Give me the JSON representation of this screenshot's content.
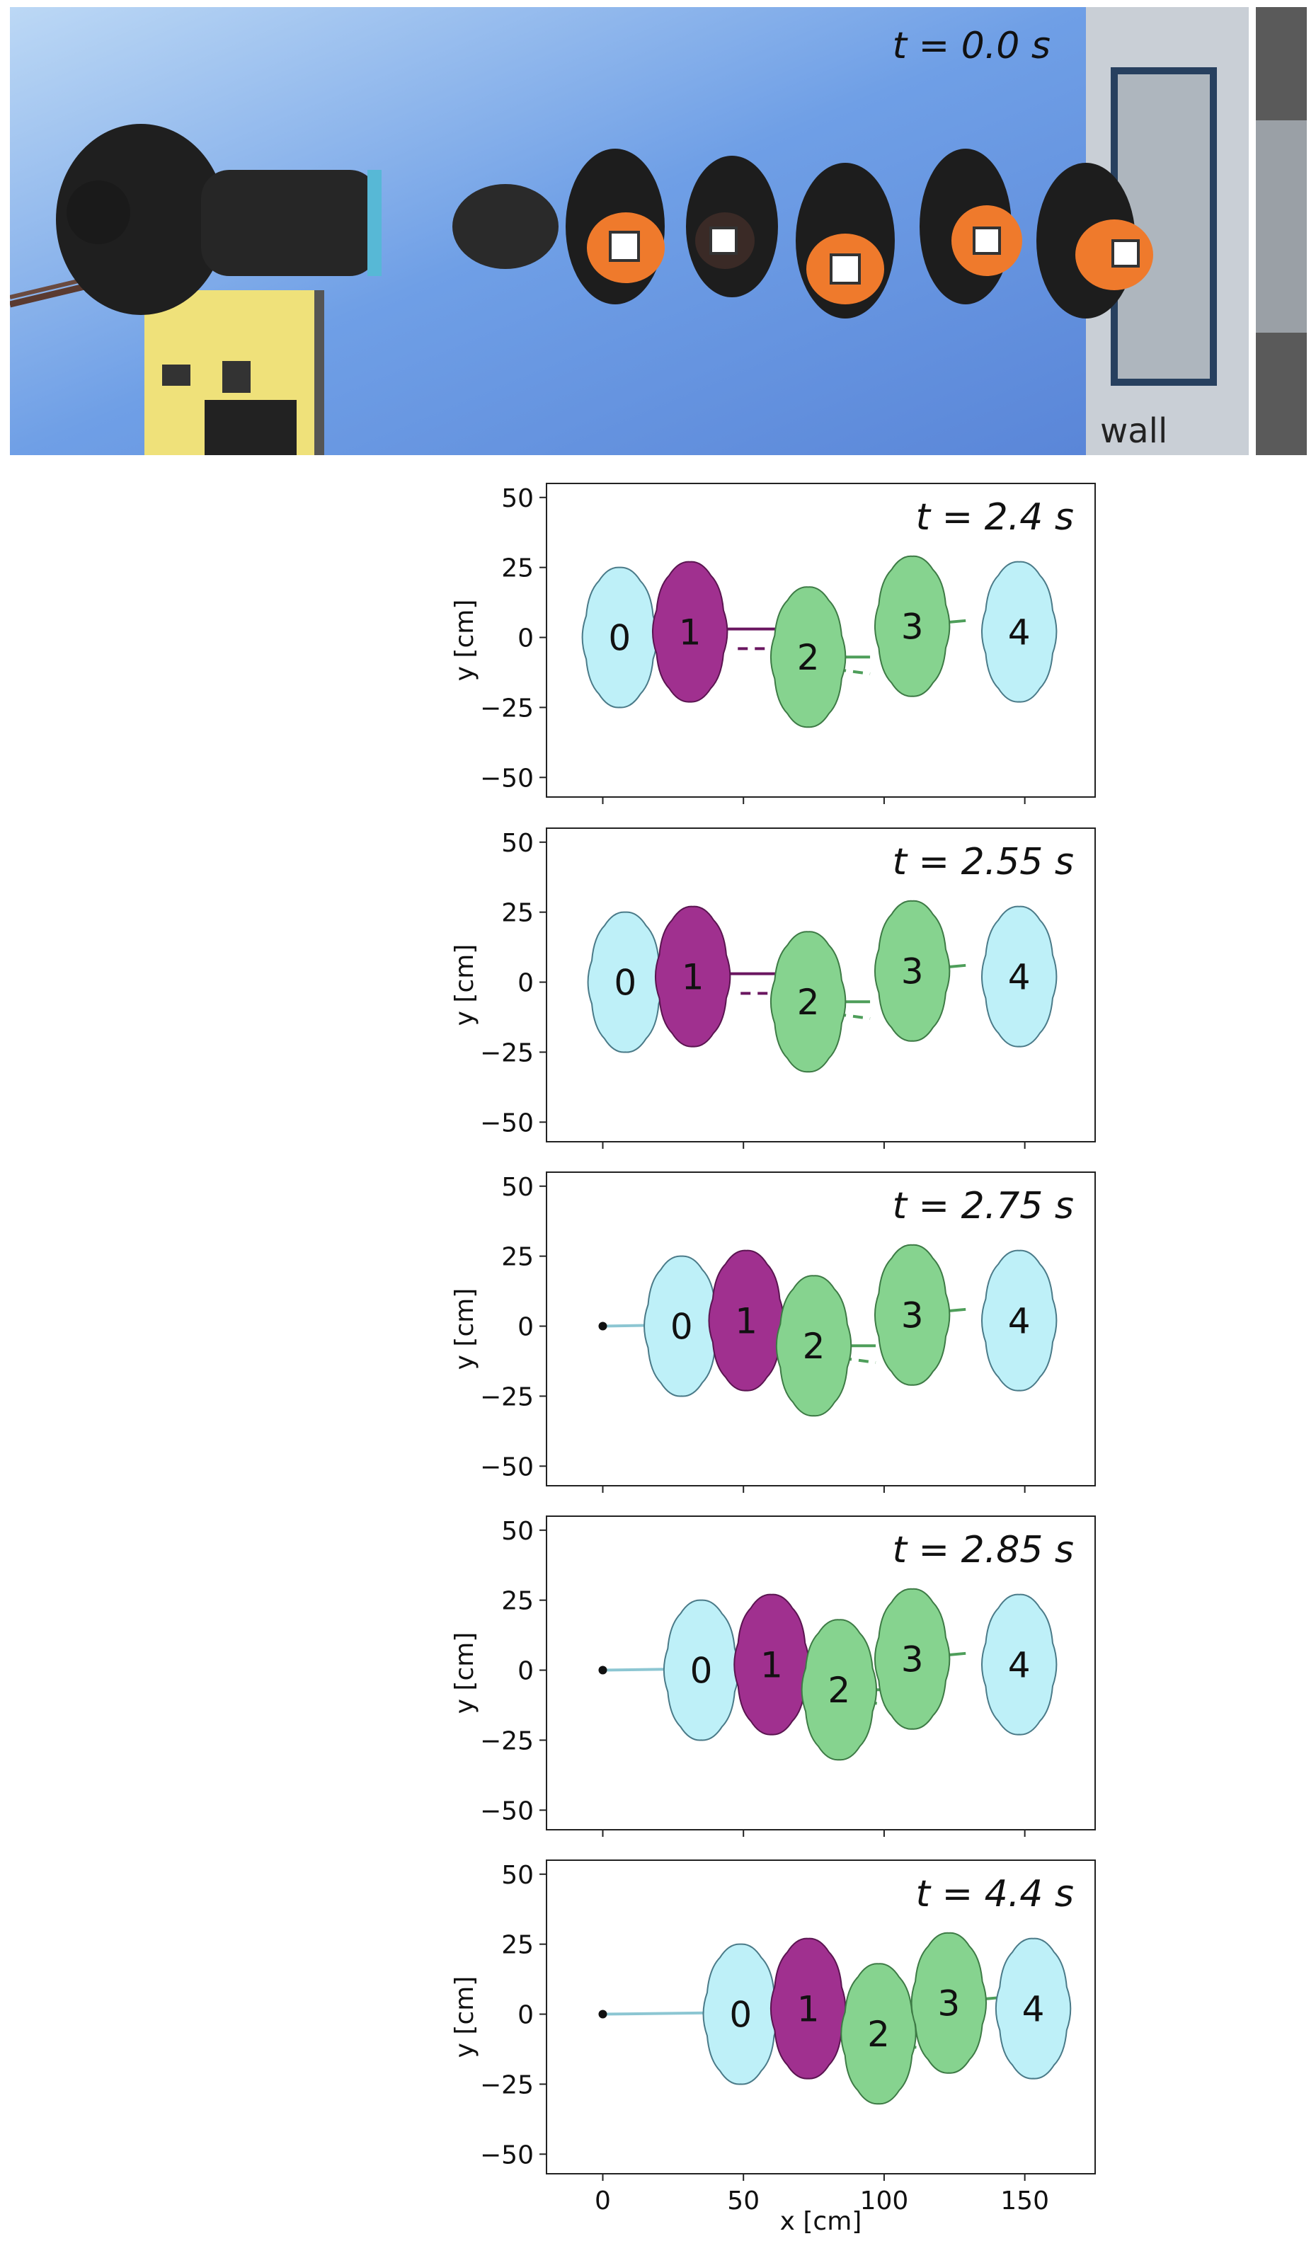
{
  "photo": {
    "time_label": "t = 0.0 s",
    "wall_label": "wall"
  },
  "chart_data": {
    "type": "scatter",
    "xlabel": "x [cm]",
    "ylabel": "y [cm]",
    "xlim": [
      -20,
      175
    ],
    "ylim": [
      -57,
      55
    ],
    "xticks": [
      0,
      50,
      100,
      150
    ],
    "yticks": [
      50,
      25,
      0,
      -25,
      -50
    ],
    "grid": false,
    "colors": {
      "light": "#bef0f8",
      "magenta": "#a0308f",
      "green": "#86d38f",
      "purple_line": "#6a1660",
      "green_line": "#4e9e5a",
      "cyan_line": "#8cc6d2"
    },
    "panels": [
      {
        "time_label": "t = 2.4 s",
        "persons": [
          {
            "id": "0",
            "x": 3,
            "y": 0,
            "color": "light",
            "label_dx": 0
          },
          {
            "id": "1",
            "x": 28,
            "y": 2,
            "color": "magenta",
            "label_dx": 0
          },
          {
            "id": "2",
            "x": 70,
            "y": -7,
            "color": "green",
            "label_dx": 0
          },
          {
            "id": "3",
            "x": 107,
            "y": 4,
            "color": "green",
            "label_dx": 0
          },
          {
            "id": "4",
            "x": 145,
            "y": 2,
            "color": "light",
            "label_dx": 0
          }
        ]
      },
      {
        "time_label": "t = 2.55 s",
        "persons": [
          {
            "id": "0",
            "x": 5,
            "y": 0,
            "color": "light",
            "label_dx": 0
          },
          {
            "id": "1",
            "x": 29,
            "y": 2,
            "color": "magenta",
            "label_dx": 0
          },
          {
            "id": "2",
            "x": 70,
            "y": -7,
            "color": "green",
            "label_dx": 0
          },
          {
            "id": "3",
            "x": 107,
            "y": 4,
            "color": "green",
            "label_dx": 0
          },
          {
            "id": "4",
            "x": 145,
            "y": 2,
            "color": "light",
            "label_dx": 0
          }
        ]
      },
      {
        "time_label": "t = 2.75 s",
        "persons": [
          {
            "id": "0",
            "x": 25,
            "y": 0,
            "color": "light",
            "label_dx": 0
          },
          {
            "id": "1",
            "x": 48,
            "y": 2,
            "color": "magenta",
            "label_dx": 0
          },
          {
            "id": "2",
            "x": 72,
            "y": -7,
            "color": "green",
            "label_dx": 0
          },
          {
            "id": "3",
            "x": 107,
            "y": 4,
            "color": "green",
            "label_dx": 0
          },
          {
            "id": "4",
            "x": 145,
            "y": 2,
            "color": "light",
            "label_dx": 0
          }
        ]
      },
      {
        "time_label": "t = 2.85 s",
        "persons": [
          {
            "id": "0",
            "x": 32,
            "y": 0,
            "color": "light",
            "label_dx": 0
          },
          {
            "id": "1",
            "x": 57,
            "y": 2,
            "color": "magenta",
            "label_dx": 0
          },
          {
            "id": "2",
            "x": 81,
            "y": -7,
            "color": "green",
            "label_dx": 0
          },
          {
            "id": "3",
            "x": 107,
            "y": 4,
            "color": "green",
            "label_dx": 0
          },
          {
            "id": "4",
            "x": 145,
            "y": 2,
            "color": "light",
            "label_dx": 0
          }
        ]
      },
      {
        "time_label": "t = 4.4 s",
        "persons": [
          {
            "id": "0",
            "x": 46,
            "y": 0,
            "color": "light",
            "label_dx": 0
          },
          {
            "id": "1",
            "x": 70,
            "y": 2,
            "color": "magenta",
            "label_dx": 0
          },
          {
            "id": "2",
            "x": 95,
            "y": -7,
            "color": "green",
            "label_dx": 0
          },
          {
            "id": "3",
            "x": 120,
            "y": 4,
            "color": "green",
            "label_dx": 0
          },
          {
            "id": "4",
            "x": 150,
            "y": 2,
            "color": "light",
            "label_dx": 0
          }
        ]
      }
    ]
  }
}
